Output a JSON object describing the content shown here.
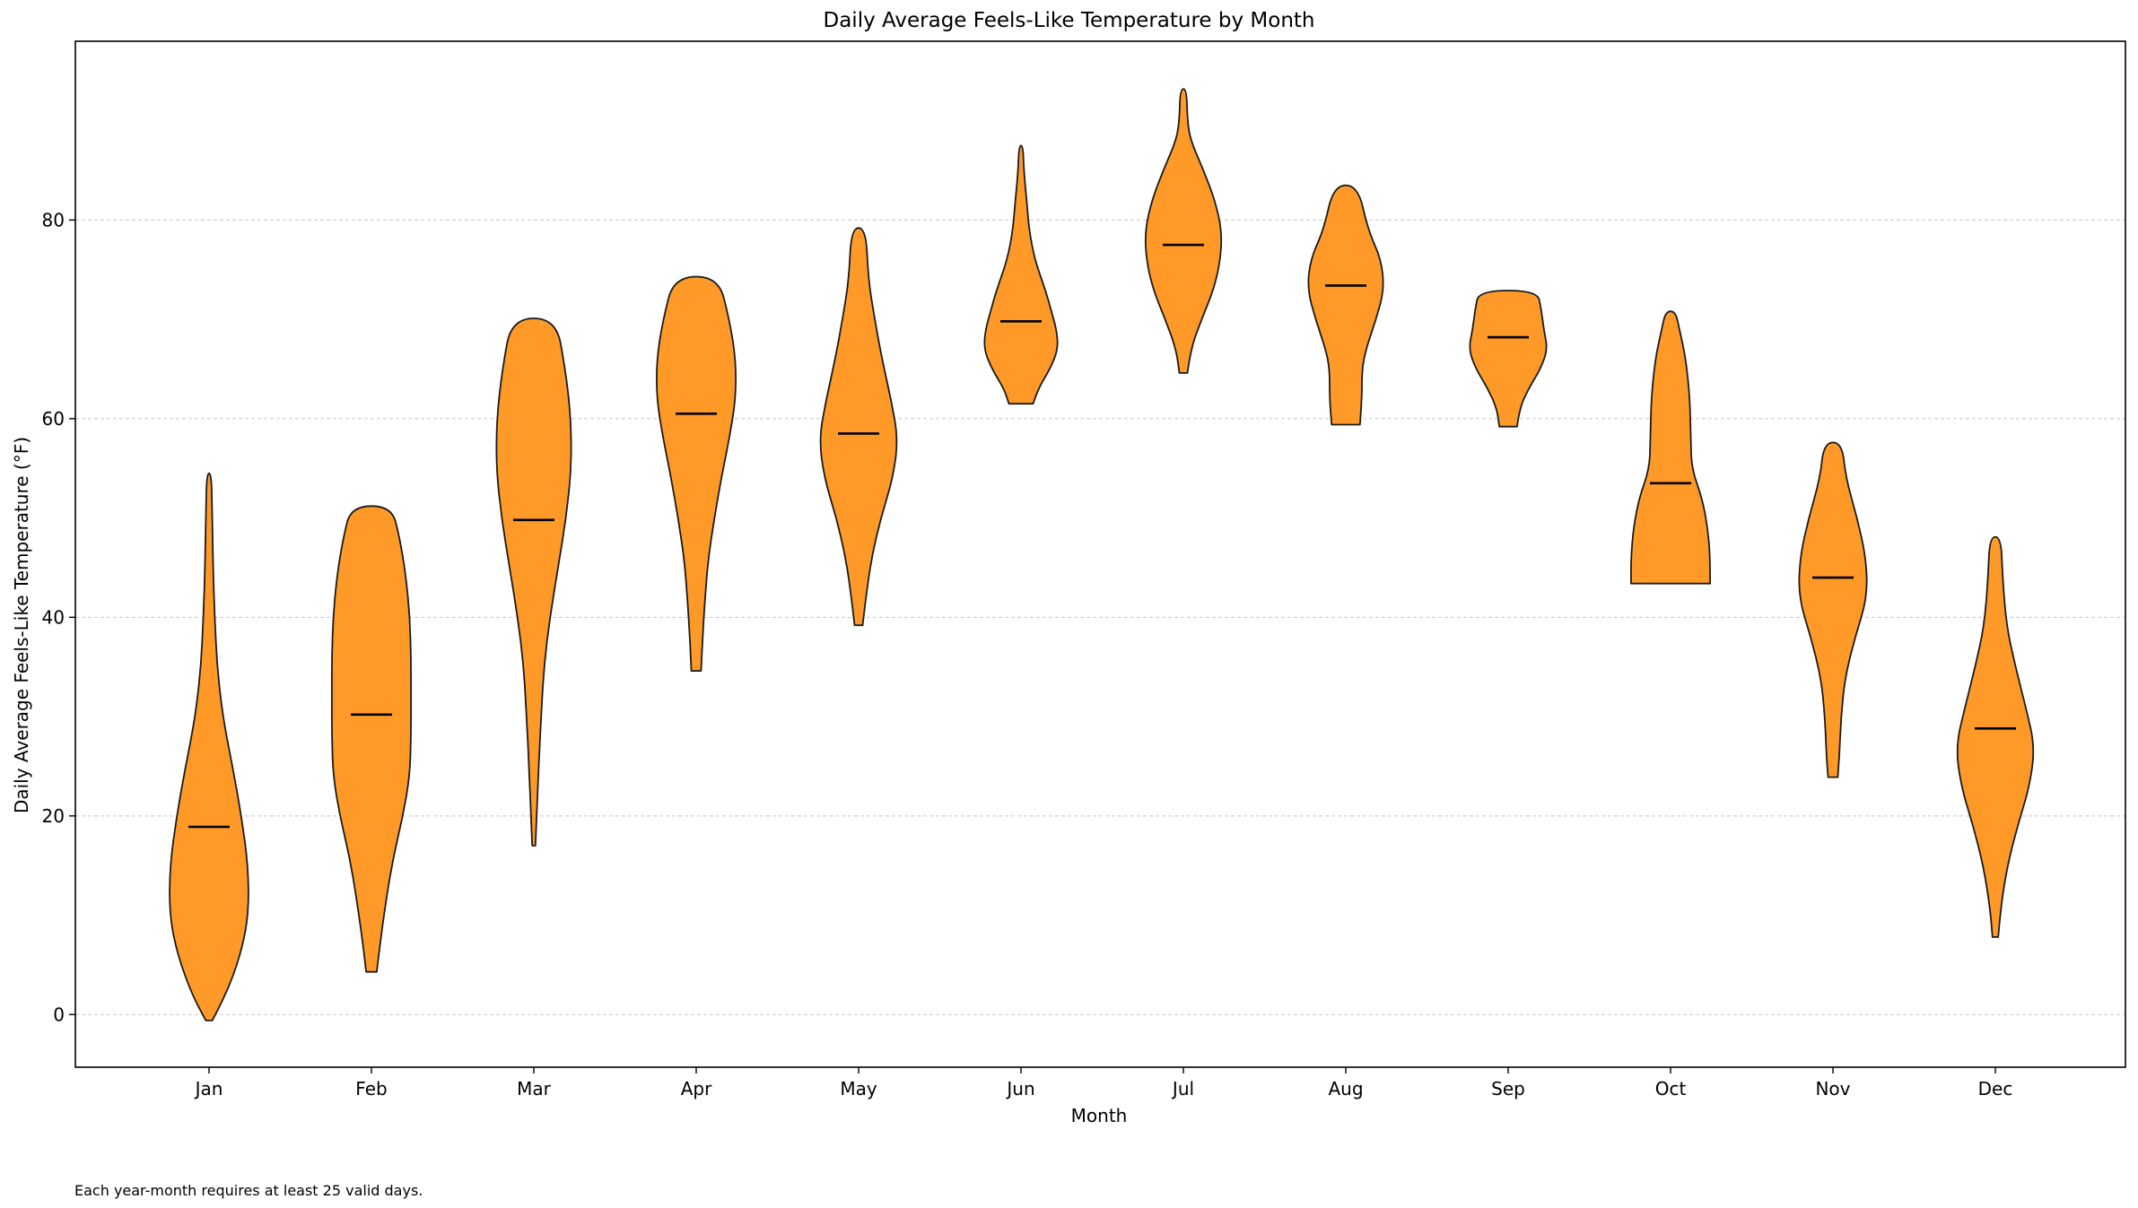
{
  "chart_data": {
    "type": "violin",
    "title": "Daily Average Feels-Like Temperature by Month",
    "xlabel": "Month",
    "ylabel": "Daily Average Feels-Like Temperature (°F)",
    "ylim": [
      -5.3,
      98
    ],
    "yticks": [
      0,
      20,
      40,
      60,
      80
    ],
    "grid": "y-dashed",
    "fill_color": "#ff9a28",
    "edge_color": "#1a1a1a",
    "median_color": "#000000",
    "categories": [
      "Jan",
      "Feb",
      "Mar",
      "Apr",
      "May",
      "Jun",
      "Jul",
      "Aug",
      "Sep",
      "Oct",
      "Nov",
      "Dec"
    ],
    "series": [
      {
        "category": "Jan",
        "min": -0.6,
        "max": 54.5,
        "median": 18.9,
        "profile": [
          [
            -0.6,
            0.08
          ],
          [
            2,
            0.42
          ],
          [
            6,
            0.78
          ],
          [
            10,
            0.98
          ],
          [
            15,
            0.97
          ],
          [
            20,
            0.8
          ],
          [
            25,
            0.58
          ],
          [
            30,
            0.34
          ],
          [
            35,
            0.2
          ],
          [
            40,
            0.14
          ],
          [
            45,
            0.1
          ],
          [
            50,
            0.08
          ],
          [
            54.5,
            0.06
          ]
        ]
      },
      {
        "category": "Feb",
        "min": 4.3,
        "max": 51.2,
        "median": 30.2,
        "profile": [
          [
            4.3,
            0.13
          ],
          [
            8,
            0.24
          ],
          [
            12,
            0.38
          ],
          [
            16,
            0.55
          ],
          [
            20,
            0.78
          ],
          [
            24,
            0.95
          ],
          [
            28,
            0.98
          ],
          [
            32,
            0.98
          ],
          [
            36,
            0.98
          ],
          [
            40,
            0.95
          ],
          [
            44,
            0.86
          ],
          [
            48,
            0.7
          ],
          [
            51.2,
            0.5
          ]
        ]
      },
      {
        "category": "Mar",
        "min": 17.0,
        "max": 70.1,
        "median": 49.8,
        "profile": [
          [
            17,
            0.04
          ],
          [
            20,
            0.07
          ],
          [
            25,
            0.12
          ],
          [
            30,
            0.18
          ],
          [
            35,
            0.25
          ],
          [
            40,
            0.4
          ],
          [
            45,
            0.6
          ],
          [
            50,
            0.8
          ],
          [
            55,
            0.93
          ],
          [
            60,
            0.92
          ],
          [
            65,
            0.78
          ],
          [
            70.1,
            0.55
          ]
        ]
      },
      {
        "category": "Apr",
        "min": 34.6,
        "max": 74.3,
        "median": 60.5,
        "profile": [
          [
            34.6,
            0.12
          ],
          [
            38,
            0.16
          ],
          [
            42,
            0.22
          ],
          [
            46,
            0.3
          ],
          [
            50,
            0.45
          ],
          [
            54,
            0.62
          ],
          [
            58,
            0.82
          ],
          [
            62,
            0.98
          ],
          [
            66,
            0.98
          ],
          [
            70,
            0.82
          ],
          [
            74.3,
            0.55
          ]
        ]
      },
      {
        "category": "May",
        "min": 39.2,
        "max": 79.2,
        "median": 58.5,
        "profile": [
          [
            39.2,
            0.1
          ],
          [
            42,
            0.18
          ],
          [
            46,
            0.32
          ],
          [
            50,
            0.55
          ],
          [
            54,
            0.85
          ],
          [
            58,
            0.98
          ],
          [
            62,
            0.8
          ],
          [
            66,
            0.58
          ],
          [
            70,
            0.4
          ],
          [
            74,
            0.24
          ],
          [
            79.2,
            0.18
          ]
        ]
      },
      {
        "category": "Jun",
        "min": 61.5,
        "max": 87.5,
        "median": 69.8,
        "profile": [
          [
            61.5,
            0.3
          ],
          [
            63,
            0.42
          ],
          [
            65,
            0.72
          ],
          [
            67,
            0.92
          ],
          [
            69,
            0.88
          ],
          [
            71,
            0.74
          ],
          [
            73,
            0.6
          ],
          [
            76,
            0.34
          ],
          [
            79,
            0.2
          ],
          [
            82,
            0.14
          ],
          [
            85,
            0.07
          ],
          [
            87.5,
            0.05
          ]
        ]
      },
      {
        "category": "Jul",
        "min": 64.6,
        "max": 93.2,
        "median": 77.5,
        "profile": [
          [
            64.6,
            0.1
          ],
          [
            67,
            0.18
          ],
          [
            70,
            0.45
          ],
          [
            73,
            0.75
          ],
          [
            76,
            0.92
          ],
          [
            79,
            0.95
          ],
          [
            82,
            0.78
          ],
          [
            85,
            0.5
          ],
          [
            88,
            0.18
          ],
          [
            90,
            0.1
          ],
          [
            93.2,
            0.08
          ]
        ]
      },
      {
        "category": "Aug",
        "min": 59.4,
        "max": 83.5,
        "median": 73.4,
        "profile": [
          [
            59.4,
            0.35
          ],
          [
            62,
            0.4
          ],
          [
            65,
            0.4
          ],
          [
            67,
            0.5
          ],
          [
            70,
            0.75
          ],
          [
            73,
            0.95
          ],
          [
            76,
            0.88
          ],
          [
            79,
            0.55
          ],
          [
            83.5,
            0.3
          ]
        ]
      },
      {
        "category": "Sep",
        "min": 59.2,
        "max": 72.9,
        "median": 68.2,
        "profile": [
          [
            59.2,
            0.22
          ],
          [
            61,
            0.28
          ],
          [
            63,
            0.5
          ],
          [
            65,
            0.8
          ],
          [
            67,
            0.98
          ],
          [
            69,
            0.88
          ],
          [
            71,
            0.82
          ],
          [
            72.9,
            0.72
          ]
        ]
      },
      {
        "category": "Oct",
        "min": 43.4,
        "max": 70.8,
        "median": 53.5,
        "profile": [
          [
            43.4,
            0.98
          ],
          [
            46,
            0.98
          ],
          [
            49,
            0.92
          ],
          [
            52,
            0.78
          ],
          [
            55,
            0.52
          ],
          [
            58,
            0.5
          ],
          [
            62,
            0.48
          ],
          [
            66,
            0.38
          ],
          [
            69,
            0.22
          ],
          [
            70.8,
            0.12
          ]
        ]
      },
      {
        "category": "Nov",
        "min": 23.9,
        "max": 57.6,
        "median": 44.0,
        "profile": [
          [
            23.9,
            0.12
          ],
          [
            26,
            0.16
          ],
          [
            30,
            0.2
          ],
          [
            34,
            0.3
          ],
          [
            38,
            0.55
          ],
          [
            42,
            0.85
          ],
          [
            46,
            0.82
          ],
          [
            50,
            0.6
          ],
          [
            54,
            0.32
          ],
          [
            57.6,
            0.22
          ]
        ]
      },
      {
        "category": "Dec",
        "min": 7.8,
        "max": 48.1,
        "median": 28.8,
        "profile": [
          [
            7.8,
            0.07
          ],
          [
            11,
            0.14
          ],
          [
            15,
            0.3
          ],
          [
            19,
            0.55
          ],
          [
            23,
            0.85
          ],
          [
            27,
            0.98
          ],
          [
            31,
            0.75
          ],
          [
            35,
            0.5
          ],
          [
            39,
            0.28
          ],
          [
            44,
            0.18
          ],
          [
            48.1,
            0.14
          ]
        ]
      }
    ]
  },
  "footnote": "Each year-month requires at least 25 valid days."
}
